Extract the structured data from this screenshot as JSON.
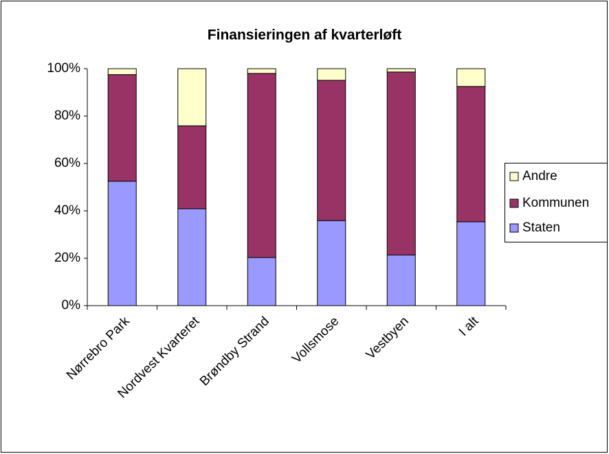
{
  "chart_data": {
    "type": "stacked_bar",
    "title": "Finansieringen af kvarterløft",
    "categories": [
      "Nørrebro Park",
      "Nordvest Kvarteret",
      "Brøndby Strand",
      "Vollsmose",
      "Vestbyen",
      "I alt"
    ],
    "series": [
      {
        "name": "Staten",
        "color": "#9999ff",
        "values": [
          52.5,
          40.9,
          20.3,
          35.9,
          21.4,
          35.4
        ]
      },
      {
        "name": "Kommunen",
        "color": "#993366",
        "values": [
          45,
          35,
          77.7,
          59.2,
          77.2,
          57.1
        ]
      },
      {
        "name": "Andre",
        "color": "#ffffcc",
        "values": [
          2.5,
          24.1,
          2,
          4.9,
          1.4,
          7.5
        ]
      }
    ],
    "ylim": [
      0,
      100
    ],
    "yticks": [
      {
        "value": 0,
        "label": "0%"
      },
      {
        "value": 20,
        "label": "20%"
      },
      {
        "value": 40,
        "label": "40%"
      },
      {
        "value": 60,
        "label": "60%"
      },
      {
        "value": 80,
        "label": "80%"
      },
      {
        "value": 100,
        "label": "100%"
      }
    ],
    "legend": "right"
  }
}
